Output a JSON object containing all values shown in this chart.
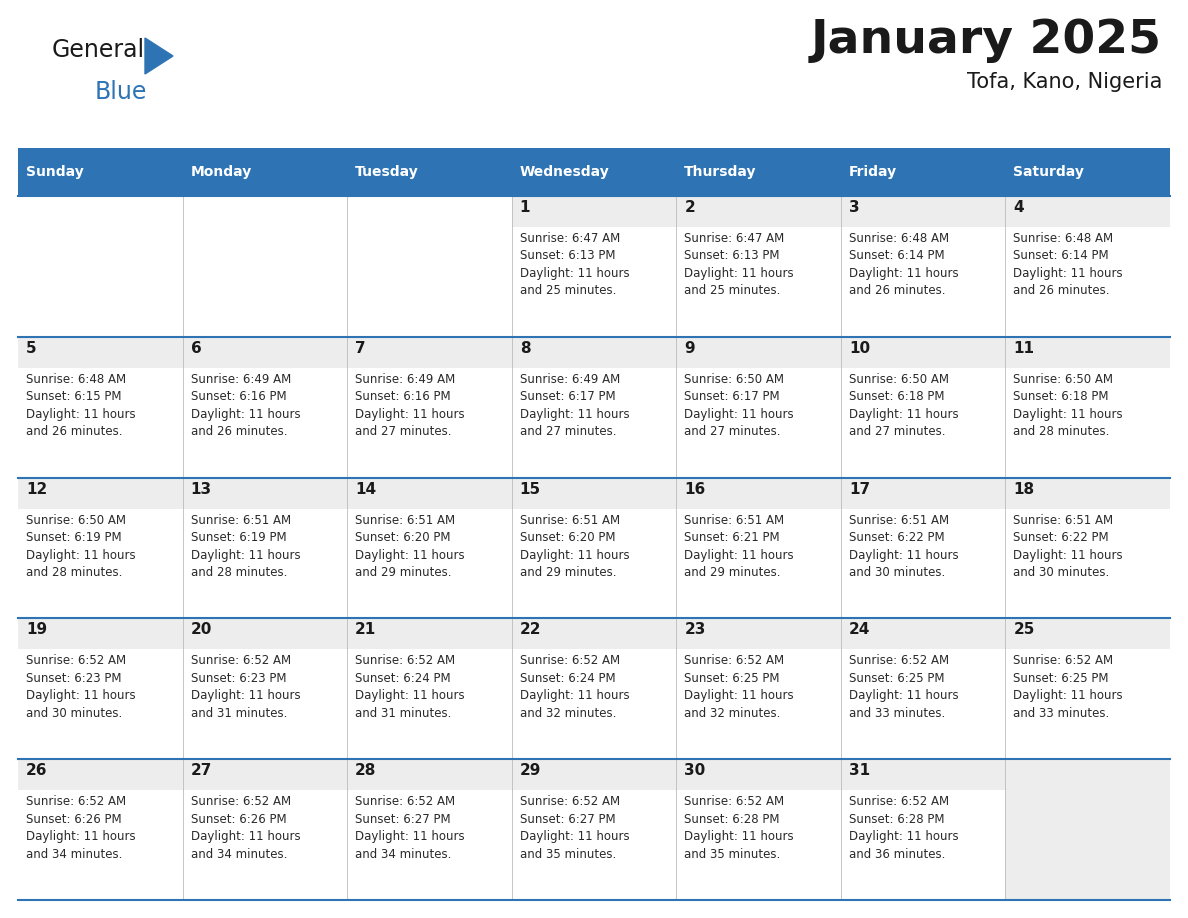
{
  "title": "January 2025",
  "subtitle": "Tofa, Kano, Nigeria",
  "days_of_week": [
    "Sunday",
    "Monday",
    "Tuesday",
    "Wednesday",
    "Thursday",
    "Friday",
    "Saturday"
  ],
  "header_bg": "#2E74B5",
  "header_text": "#FFFFFF",
  "cell_bg_light": "#EDEDED",
  "cell_bg_white": "#FFFFFF",
  "line_color": "#2E74B5",
  "title_color": "#1A1A1A",
  "subtitle_color": "#1A1A1A",
  "day_number_color": "#1A1A1A",
  "cell_text_color": "#2A2A2A",
  "logo_text_color": "#1A1A1A",
  "logo_blue_color": "#2E74B5",
  "calendar_data": [
    [
      {
        "day": null,
        "sunrise": null,
        "sunset": null,
        "daylight_l1": null,
        "daylight_l2": null
      },
      {
        "day": null,
        "sunrise": null,
        "sunset": null,
        "daylight_l1": null,
        "daylight_l2": null
      },
      {
        "day": null,
        "sunrise": null,
        "sunset": null,
        "daylight_l1": null,
        "daylight_l2": null
      },
      {
        "day": 1,
        "sunrise": "6:47 AM",
        "sunset": "6:13 PM",
        "daylight_l1": "Daylight: 11 hours",
        "daylight_l2": "and 25 minutes."
      },
      {
        "day": 2,
        "sunrise": "6:47 AM",
        "sunset": "6:13 PM",
        "daylight_l1": "Daylight: 11 hours",
        "daylight_l2": "and 25 minutes."
      },
      {
        "day": 3,
        "sunrise": "6:48 AM",
        "sunset": "6:14 PM",
        "daylight_l1": "Daylight: 11 hours",
        "daylight_l2": "and 26 minutes."
      },
      {
        "day": 4,
        "sunrise": "6:48 AM",
        "sunset": "6:14 PM",
        "daylight_l1": "Daylight: 11 hours",
        "daylight_l2": "and 26 minutes."
      }
    ],
    [
      {
        "day": 5,
        "sunrise": "6:48 AM",
        "sunset": "6:15 PM",
        "daylight_l1": "Daylight: 11 hours",
        "daylight_l2": "and 26 minutes."
      },
      {
        "day": 6,
        "sunrise": "6:49 AM",
        "sunset": "6:16 PM",
        "daylight_l1": "Daylight: 11 hours",
        "daylight_l2": "and 26 minutes."
      },
      {
        "day": 7,
        "sunrise": "6:49 AM",
        "sunset": "6:16 PM",
        "daylight_l1": "Daylight: 11 hours",
        "daylight_l2": "and 27 minutes."
      },
      {
        "day": 8,
        "sunrise": "6:49 AM",
        "sunset": "6:17 PM",
        "daylight_l1": "Daylight: 11 hours",
        "daylight_l2": "and 27 minutes."
      },
      {
        "day": 9,
        "sunrise": "6:50 AM",
        "sunset": "6:17 PM",
        "daylight_l1": "Daylight: 11 hours",
        "daylight_l2": "and 27 minutes."
      },
      {
        "day": 10,
        "sunrise": "6:50 AM",
        "sunset": "6:18 PM",
        "daylight_l1": "Daylight: 11 hours",
        "daylight_l2": "and 27 minutes."
      },
      {
        "day": 11,
        "sunrise": "6:50 AM",
        "sunset": "6:18 PM",
        "daylight_l1": "Daylight: 11 hours",
        "daylight_l2": "and 28 minutes."
      }
    ],
    [
      {
        "day": 12,
        "sunrise": "6:50 AM",
        "sunset": "6:19 PM",
        "daylight_l1": "Daylight: 11 hours",
        "daylight_l2": "and 28 minutes."
      },
      {
        "day": 13,
        "sunrise": "6:51 AM",
        "sunset": "6:19 PM",
        "daylight_l1": "Daylight: 11 hours",
        "daylight_l2": "and 28 minutes."
      },
      {
        "day": 14,
        "sunrise": "6:51 AM",
        "sunset": "6:20 PM",
        "daylight_l1": "Daylight: 11 hours",
        "daylight_l2": "and 29 minutes."
      },
      {
        "day": 15,
        "sunrise": "6:51 AM",
        "sunset": "6:20 PM",
        "daylight_l1": "Daylight: 11 hours",
        "daylight_l2": "and 29 minutes."
      },
      {
        "day": 16,
        "sunrise": "6:51 AM",
        "sunset": "6:21 PM",
        "daylight_l1": "Daylight: 11 hours",
        "daylight_l2": "and 29 minutes."
      },
      {
        "day": 17,
        "sunrise": "6:51 AM",
        "sunset": "6:22 PM",
        "daylight_l1": "Daylight: 11 hours",
        "daylight_l2": "and 30 minutes."
      },
      {
        "day": 18,
        "sunrise": "6:51 AM",
        "sunset": "6:22 PM",
        "daylight_l1": "Daylight: 11 hours",
        "daylight_l2": "and 30 minutes."
      }
    ],
    [
      {
        "day": 19,
        "sunrise": "6:52 AM",
        "sunset": "6:23 PM",
        "daylight_l1": "Daylight: 11 hours",
        "daylight_l2": "and 30 minutes."
      },
      {
        "day": 20,
        "sunrise": "6:52 AM",
        "sunset": "6:23 PM",
        "daylight_l1": "Daylight: 11 hours",
        "daylight_l2": "and 31 minutes."
      },
      {
        "day": 21,
        "sunrise": "6:52 AM",
        "sunset": "6:24 PM",
        "daylight_l1": "Daylight: 11 hours",
        "daylight_l2": "and 31 minutes."
      },
      {
        "day": 22,
        "sunrise": "6:52 AM",
        "sunset": "6:24 PM",
        "daylight_l1": "Daylight: 11 hours",
        "daylight_l2": "and 32 minutes."
      },
      {
        "day": 23,
        "sunrise": "6:52 AM",
        "sunset": "6:25 PM",
        "daylight_l1": "Daylight: 11 hours",
        "daylight_l2": "and 32 minutes."
      },
      {
        "day": 24,
        "sunrise": "6:52 AM",
        "sunset": "6:25 PM",
        "daylight_l1": "Daylight: 11 hours",
        "daylight_l2": "and 33 minutes."
      },
      {
        "day": 25,
        "sunrise": "6:52 AM",
        "sunset": "6:25 PM",
        "daylight_l1": "Daylight: 11 hours",
        "daylight_l2": "and 33 minutes."
      }
    ],
    [
      {
        "day": 26,
        "sunrise": "6:52 AM",
        "sunset": "6:26 PM",
        "daylight_l1": "Daylight: 11 hours",
        "daylight_l2": "and 34 minutes."
      },
      {
        "day": 27,
        "sunrise": "6:52 AM",
        "sunset": "6:26 PM",
        "daylight_l1": "Daylight: 11 hours",
        "daylight_l2": "and 34 minutes."
      },
      {
        "day": 28,
        "sunrise": "6:52 AM",
        "sunset": "6:27 PM",
        "daylight_l1": "Daylight: 11 hours",
        "daylight_l2": "and 34 minutes."
      },
      {
        "day": 29,
        "sunrise": "6:52 AM",
        "sunset": "6:27 PM",
        "daylight_l1": "Daylight: 11 hours",
        "daylight_l2": "and 35 minutes."
      },
      {
        "day": 30,
        "sunrise": "6:52 AM",
        "sunset": "6:28 PM",
        "daylight_l1": "Daylight: 11 hours",
        "daylight_l2": "and 35 minutes."
      },
      {
        "day": 31,
        "sunrise": "6:52 AM",
        "sunset": "6:28 PM",
        "daylight_l1": "Daylight: 11 hours",
        "daylight_l2": "and 36 minutes."
      },
      {
        "day": null,
        "sunrise": null,
        "sunset": null,
        "daylight_l1": null,
        "daylight_l2": null
      }
    ]
  ]
}
